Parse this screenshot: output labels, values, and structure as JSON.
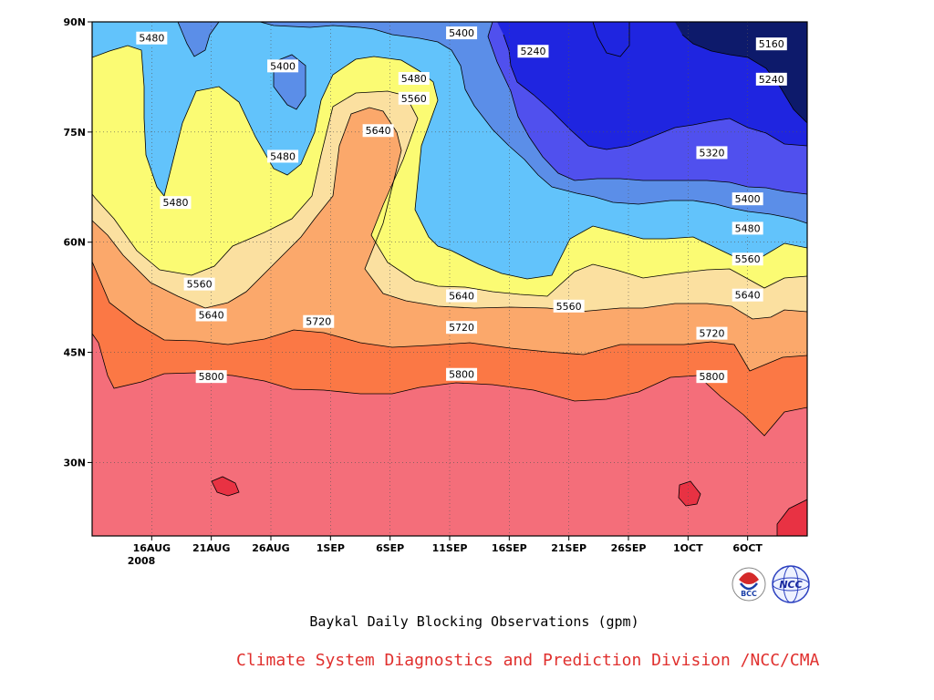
{
  "chart_data": {
    "type": "contour",
    "title": "Baykal Daily Blocking Observations (gpm)",
    "credit": "Climate System Diagnostics and Prediction Division /NCC/CMA",
    "year_label": "2008",
    "x_ticks": [
      "16AUG",
      "21AUG",
      "26AUG",
      "1SEP",
      "6SEP",
      "11SEP",
      "16SEP",
      "21SEP",
      "26SEP",
      "1OCT",
      "6OCT"
    ],
    "y_ticks": [
      "30N",
      "45N",
      "60N",
      "75N",
      "90N"
    ],
    "y_range_deg": [
      20,
      90
    ],
    "x_range": [
      "2008-08-11",
      "2008-10-10"
    ],
    "levels": [
      5160,
      5240,
      5320,
      5400,
      5480,
      5560,
      5640,
      5720,
      5800,
      5880
    ],
    "fill_colors": [
      "#0d1a6b",
      "#1f25e0",
      "#5050ee",
      "#5b8ee8",
      "#62c3fb",
      "#fbfb73",
      "#fbe0a0",
      "#fba86b",
      "#fb7845",
      "#f46e7a",
      "#e83243"
    ],
    "contour_labels": [
      {
        "text": "5480",
        "date": "2008-08-16",
        "lat": 87.8
      },
      {
        "text": "5400",
        "date": "2008-08-27",
        "lat": 84.0
      },
      {
        "text": "5400",
        "date": "2008-09-11",
        "lat": 88.5
      },
      {
        "text": "5240",
        "date": "2008-09-17",
        "lat": 86.0
      },
      {
        "text": "5160",
        "date": "2008-10-07",
        "lat": 87.0
      },
      {
        "text": "5240",
        "date": "2008-10-07",
        "lat": 82.2
      },
      {
        "text": "5480",
        "date": "2008-09-07",
        "lat": 82.3
      },
      {
        "text": "5560",
        "date": "2008-09-07",
        "lat": 79.6
      },
      {
        "text": "5640",
        "date": "2008-09-04",
        "lat": 75.2
      },
      {
        "text": "5480",
        "date": "2008-08-27",
        "lat": 71.7
      },
      {
        "text": "5480",
        "date": "2008-08-18",
        "lat": 65.4
      },
      {
        "text": "5320",
        "date": "2008-10-02",
        "lat": 72.2
      },
      {
        "text": "5400",
        "date": "2008-10-05",
        "lat": 65.9
      },
      {
        "text": "5480",
        "date": "2008-10-05",
        "lat": 61.9
      },
      {
        "text": "5560",
        "date": "2008-08-20",
        "lat": 54.3
      },
      {
        "text": "5560",
        "date": "2008-10-05",
        "lat": 57.7
      },
      {
        "text": "5640",
        "date": "2008-08-21",
        "lat": 50.1
      },
      {
        "text": "5640",
        "date": "2008-09-11",
        "lat": 52.7
      },
      {
        "text": "5560",
        "date": "2008-09-20",
        "lat": 51.3
      },
      {
        "text": "5640",
        "date": "2008-10-05",
        "lat": 52.8
      },
      {
        "text": "5720",
        "date": "2008-08-30",
        "lat": 49.2
      },
      {
        "text": "5720",
        "date": "2008-09-11",
        "lat": 48.4
      },
      {
        "text": "5720",
        "date": "2008-10-02",
        "lat": 47.6
      },
      {
        "text": "5800",
        "date": "2008-08-21",
        "lat": 41.7
      },
      {
        "text": "5800",
        "date": "2008-09-11",
        "lat": 42.0
      },
      {
        "text": "5800",
        "date": "2008-10-02",
        "lat": 41.7
      }
    ]
  },
  "logos": [
    {
      "name": "bcc-logo",
      "text": "BCC"
    },
    {
      "name": "ncc-logo",
      "text": "NCC"
    }
  ],
  "colors": {
    "credit": "#e0302e",
    "frame": "#000000"
  }
}
